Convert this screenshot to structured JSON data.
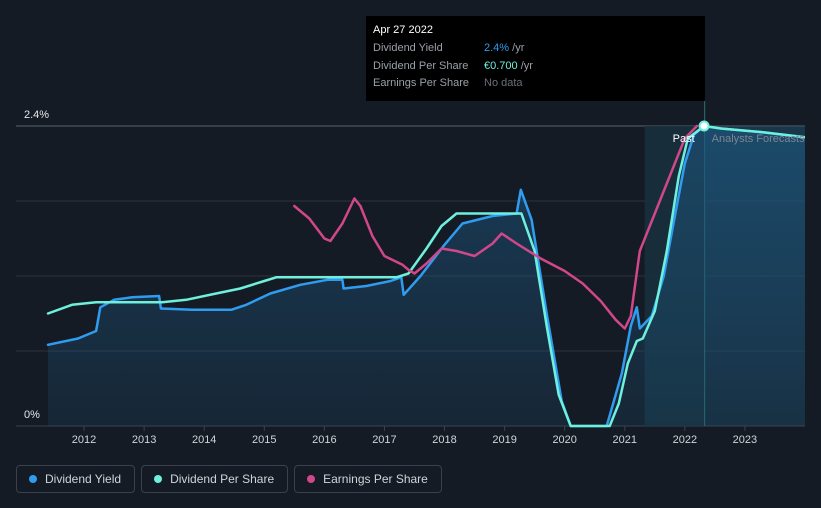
{
  "chart_data": {
    "type": "line",
    "ylim": [
      0,
      2.4
    ],
    "y_ticks": [
      {
        "value": 0,
        "label": "0%"
      },
      {
        "value": 2.4,
        "label": "2.4%"
      }
    ],
    "x_tick_labels": [
      "2012",
      "2013",
      "2014",
      "2015",
      "2016",
      "2017",
      "2018",
      "2019",
      "2020",
      "2021",
      "2022",
      "2023"
    ],
    "xlim": [
      2011.4,
      2024.0
    ],
    "grid": true,
    "series": [
      {
        "name": "Dividend Yield",
        "color": "#2f9cf0",
        "area": true,
        "points": [
          [
            2011.4,
            0.65
          ],
          [
            2011.9,
            0.7
          ],
          [
            2012.2,
            0.76
          ],
          [
            2012.27,
            0.95
          ],
          [
            2012.5,
            1.01
          ],
          [
            2012.8,
            1.03
          ],
          [
            2013.25,
            1.04
          ],
          [
            2013.28,
            0.94
          ],
          [
            2013.8,
            0.93
          ],
          [
            2014.45,
            0.93
          ],
          [
            2014.7,
            0.97
          ],
          [
            2015.1,
            1.06
          ],
          [
            2015.6,
            1.13
          ],
          [
            2016.05,
            1.17
          ],
          [
            2016.3,
            1.17
          ],
          [
            2016.32,
            1.1
          ],
          [
            2016.7,
            1.12
          ],
          [
            2017.1,
            1.16
          ],
          [
            2017.28,
            1.19
          ],
          [
            2017.32,
            1.05
          ],
          [
            2017.6,
            1.2
          ],
          [
            2018.0,
            1.45
          ],
          [
            2018.3,
            1.62
          ],
          [
            2018.8,
            1.68
          ],
          [
            2019.2,
            1.7
          ],
          [
            2019.27,
            1.89
          ],
          [
            2019.45,
            1.65
          ],
          [
            2019.7,
            0.9
          ],
          [
            2019.95,
            0.2
          ],
          [
            2020.1,
            0.0
          ],
          [
            2020.7,
            0.0
          ],
          [
            2020.95,
            0.42
          ],
          [
            2021.1,
            0.8
          ],
          [
            2021.2,
            0.95
          ],
          [
            2021.25,
            0.78
          ],
          [
            2021.45,
            0.88
          ],
          [
            2021.65,
            1.2
          ],
          [
            2021.85,
            1.72
          ],
          [
            2022.0,
            2.1
          ],
          [
            2022.15,
            2.33
          ],
          [
            2022.32,
            2.4
          ],
          [
            2022.6,
            2.38
          ],
          [
            2023.3,
            2.35
          ],
          [
            2024.0,
            2.31
          ]
        ]
      },
      {
        "name": "Dividend Per Share",
        "color": "#6ff0dd",
        "area": false,
        "points": [
          [
            2011.4,
            0.9
          ],
          [
            2011.8,
            0.97
          ],
          [
            2012.2,
            0.99
          ],
          [
            2012.7,
            0.99
          ],
          [
            2013.3,
            0.99
          ],
          [
            2013.7,
            1.01
          ],
          [
            2014.2,
            1.06
          ],
          [
            2014.6,
            1.1
          ],
          [
            2015.0,
            1.16
          ],
          [
            2015.2,
            1.19
          ],
          [
            2015.6,
            1.19
          ],
          [
            2016.4,
            1.19
          ],
          [
            2017.2,
            1.19
          ],
          [
            2017.4,
            1.22
          ],
          [
            2017.7,
            1.42
          ],
          [
            2017.95,
            1.6
          ],
          [
            2018.2,
            1.7
          ],
          [
            2018.8,
            1.7
          ],
          [
            2019.1,
            1.7
          ],
          [
            2019.28,
            1.7
          ],
          [
            2019.5,
            1.4
          ],
          [
            2019.7,
            0.8
          ],
          [
            2019.9,
            0.25
          ],
          [
            2020.1,
            0.0
          ],
          [
            2020.75,
            0.0
          ],
          [
            2020.9,
            0.18
          ],
          [
            2021.05,
            0.5
          ],
          [
            2021.2,
            0.68
          ],
          [
            2021.3,
            0.7
          ],
          [
            2021.5,
            0.92
          ],
          [
            2021.7,
            1.4
          ],
          [
            2021.9,
            2.0
          ],
          [
            2022.05,
            2.3
          ],
          [
            2022.32,
            2.4
          ],
          [
            2022.6,
            2.38
          ],
          [
            2023.3,
            2.35
          ],
          [
            2024.0,
            2.31
          ]
        ]
      },
      {
        "name": "Earnings Per Share",
        "color": "#d0478a",
        "area": false,
        "points": [
          [
            2015.5,
            1.76
          ],
          [
            2015.75,
            1.66
          ],
          [
            2016.0,
            1.5
          ],
          [
            2016.1,
            1.48
          ],
          [
            2016.3,
            1.62
          ],
          [
            2016.5,
            1.82
          ],
          [
            2016.6,
            1.76
          ],
          [
            2016.8,
            1.52
          ],
          [
            2017.0,
            1.36
          ],
          [
            2017.3,
            1.29
          ],
          [
            2017.4,
            1.25
          ],
          [
            2017.5,
            1.22
          ],
          [
            2017.7,
            1.3
          ],
          [
            2017.95,
            1.42
          ],
          [
            2018.2,
            1.4
          ],
          [
            2018.5,
            1.36
          ],
          [
            2018.8,
            1.46
          ],
          [
            2018.95,
            1.54
          ],
          [
            2019.2,
            1.46
          ],
          [
            2019.6,
            1.34
          ],
          [
            2020.0,
            1.24
          ],
          [
            2020.3,
            1.14
          ],
          [
            2020.6,
            1.0
          ],
          [
            2020.85,
            0.85
          ],
          [
            2021.0,
            0.78
          ],
          [
            2021.1,
            0.88
          ],
          [
            2021.25,
            1.4
          ],
          [
            2021.5,
            1.7
          ],
          [
            2021.75,
            2.0
          ],
          [
            2022.0,
            2.3
          ],
          [
            2022.2,
            2.4
          ]
        ]
      }
    ],
    "forecast_region": {
      "start": 2021.33,
      "end": 2022.33,
      "past_label": "Past",
      "forecast_label": "Analysts Forecasts"
    },
    "highlight": {
      "x": 2022.32,
      "y": 2.4
    }
  },
  "tooltip": {
    "date": "Apr 27 2022",
    "rows": [
      {
        "key": "Dividend Yield",
        "value": "2.4%",
        "unit": " /yr"
      },
      {
        "key": "Dividend Per Share",
        "value": "€0.700",
        "unit": " /yr"
      },
      {
        "key": "Earnings Per Share",
        "value": "No data",
        "unit": ""
      }
    ]
  },
  "legend": [
    {
      "label": "Dividend Yield",
      "color": "#2f9cf0"
    },
    {
      "label": "Dividend Per Share",
      "color": "#6ff0dd"
    },
    {
      "label": "Earnings Per Share",
      "color": "#d0478a"
    }
  ]
}
